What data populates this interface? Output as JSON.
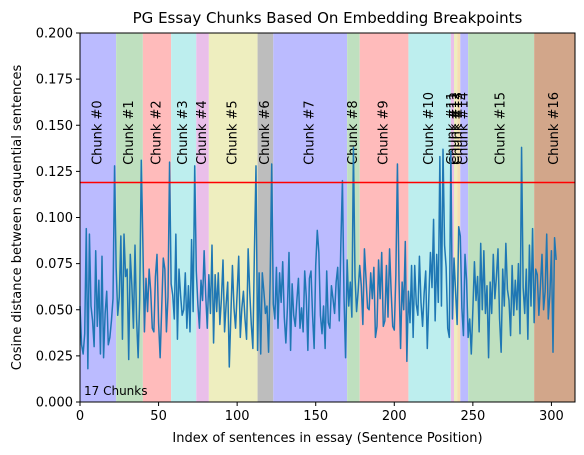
{
  "chart_data": {
    "type": "line",
    "title": "PG Essay Chunks Based On Embedding Breakpoints",
    "xlabel": "Index of sentences in essay (Sentence Position)",
    "ylabel": "Cosine distance between sequential sentences",
    "xlim": [
      0,
      315
    ],
    "ylim": [
      0,
      0.2
    ],
    "xticks": [
      0,
      50,
      100,
      150,
      200,
      250,
      300
    ],
    "yticks": [
      0.0,
      0.025,
      0.05,
      0.075,
      0.1,
      0.125,
      0.15,
      0.175,
      0.2
    ],
    "ytick_labels": [
      "0.000",
      "0.025",
      "0.050",
      "0.075",
      "0.100",
      "0.125",
      "0.150",
      "0.175",
      "0.200"
    ],
    "threshold": 0.119,
    "threshold_color": "#ff0000",
    "line_color": "#1f77b4",
    "grid": false,
    "annotation": "17 Chunks",
    "chunks": [
      {
        "label": "Chunk #0",
        "start": 0,
        "end": 23,
        "color": "#bbbbff"
      },
      {
        "label": "Chunk #1",
        "start": 23,
        "end": 40,
        "color": "#bfe0bf"
      },
      {
        "label": "Chunk #2",
        "start": 40,
        "end": 58,
        "color": "#ffbbbb"
      },
      {
        "label": "Chunk #3",
        "start": 58,
        "end": 74,
        "color": "#bdeeee"
      },
      {
        "label": "Chunk #4",
        "start": 74,
        "end": 82,
        "color": "#eabfea"
      },
      {
        "label": "Chunk #5",
        "start": 82,
        "end": 113,
        "color": "#eeeebf"
      },
      {
        "label": "Chunk #6",
        "start": 113,
        "end": 123,
        "color": "#bdbdbd"
      },
      {
        "label": "Chunk #7",
        "start": 123,
        "end": 170,
        "color": "#bbbbff"
      },
      {
        "label": "Chunk #8",
        "start": 170,
        "end": 178,
        "color": "#bfe0bf"
      },
      {
        "label": "Chunk #9",
        "start": 178,
        "end": 209,
        "color": "#ffbbbb"
      },
      {
        "label": "Chunk #10",
        "start": 209,
        "end": 236,
        "color": "#bdeeee"
      },
      {
        "label": "Chunk #11",
        "start": 236,
        "end": 238,
        "color": "#eabfea"
      },
      {
        "label": "Chunk #12",
        "start": 238,
        "end": 240,
        "color": "#eeeebf"
      },
      {
        "label": "Chunk #13",
        "start": 240,
        "end": 242,
        "color": "#f5deb3"
      },
      {
        "label": "Chunk #14",
        "start": 242,
        "end": 247,
        "color": "#bbbbff"
      },
      {
        "label": "Chunk #15",
        "start": 247,
        "end": 289,
        "color": "#bfe0bf"
      },
      {
        "label": "Chunk #16",
        "start": 289,
        "end": 315,
        "color": "#d2a68a"
      }
    ],
    "y": [
      0.052,
      0.031,
      0.026,
      0.037,
      0.094,
      0.018,
      0.091,
      0.052,
      0.044,
      0.03,
      0.082,
      0.041,
      0.066,
      0.026,
      0.079,
      0.024,
      0.048,
      0.06,
      0.031,
      0.035,
      0.044,
      0.056,
      0.128,
      0.073,
      0.047,
      0.057,
      0.09,
      0.034,
      0.091,
      0.068,
      0.072,
      0.023,
      0.08,
      0.063,
      0.04,
      0.085,
      0.045,
      0.024,
      0.056,
      0.131,
      0.086,
      0.038,
      0.067,
      0.049,
      0.072,
      0.06,
      0.04,
      0.038,
      0.068,
      0.08,
      0.043,
      0.024,
      0.051,
      0.078,
      0.072,
      0.038,
      0.057,
      0.13,
      0.064,
      0.058,
      0.045,
      0.091,
      0.034,
      0.072,
      0.058,
      0.047,
      0.05,
      0.07,
      0.04,
      0.063,
      0.038,
      0.088,
      0.049,
      0.128,
      0.071,
      0.053,
      0.04,
      0.066,
      0.055,
      0.082,
      0.058,
      0.04,
      0.069,
      0.048,
      0.085,
      0.032,
      0.069,
      0.049,
      0.07,
      0.042,
      0.056,
      0.077,
      0.038,
      0.053,
      0.065,
      0.019,
      0.047,
      0.074,
      0.051,
      0.04,
      0.059,
      0.079,
      0.035,
      0.051,
      0.06,
      0.045,
      0.034,
      0.083,
      0.06,
      0.042,
      0.029,
      0.082,
      0.128,
      0.028,
      0.07,
      0.026,
      0.07,
      0.06,
      0.048,
      0.052,
      0.027,
      0.066,
      0.129,
      0.053,
      0.045,
      0.073,
      0.04,
      0.07,
      0.054,
      0.076,
      0.046,
      0.032,
      0.051,
      0.081,
      0.028,
      0.064,
      0.047,
      0.041,
      0.055,
      0.067,
      0.04,
      0.051,
      0.038,
      0.071,
      0.057,
      0.028,
      0.067,
      0.071,
      0.047,
      0.029,
      0.074,
      0.093,
      0.081,
      0.047,
      0.037,
      0.052,
      0.029,
      0.071,
      0.043,
      0.04,
      0.063,
      0.056,
      0.048,
      0.065,
      0.073,
      0.044,
      0.086,
      0.12,
      0.057,
      0.024,
      0.077,
      0.052,
      0.065,
      0.046,
      0.138,
      0.068,
      0.049,
      0.06,
      0.074,
      0.063,
      0.042,
      0.083,
      0.067,
      0.051,
      0.05,
      0.07,
      0.056,
      0.073,
      0.035,
      0.041,
      0.077,
      0.056,
      0.081,
      0.041,
      0.044,
      0.074,
      0.046,
      0.083,
      0.06,
      0.041,
      0.039,
      0.069,
      0.129,
      0.066,
      0.029,
      0.065,
      0.05,
      0.087,
      0.022,
      0.06,
      0.043,
      0.074,
      0.035,
      0.074,
      0.053,
      0.047,
      0.079,
      0.054,
      0.041,
      0.059,
      0.071,
      0.029,
      0.057,
      0.081,
      0.062,
      0.099,
      0.044,
      0.08,
      0.054,
      0.133,
      0.052,
      0.137,
      0.085,
      0.073,
      0.04,
      0.035,
      0.136,
      0.045,
      0.078,
      0.06,
      0.042,
      0.095,
      0.09,
      0.051,
      0.036,
      0.08,
      0.066,
      0.035,
      0.045,
      0.026,
      0.05,
      0.076,
      0.055,
      0.068,
      0.038,
      0.086,
      0.05,
      0.082,
      0.048,
      0.063,
      0.024,
      0.065,
      0.048,
      0.08,
      0.056,
      0.068,
      0.083,
      0.045,
      0.027,
      0.072,
      0.052,
      0.086,
      0.061,
      0.055,
      0.036,
      0.074,
      0.047,
      0.066,
      0.05,
      0.075,
      0.037,
      0.138,
      0.062,
      0.048,
      0.072,
      0.034,
      0.085,
      0.052,
      0.094,
      0.043,
      0.072,
      0.069,
      0.047,
      0.063,
      0.08,
      0.05,
      0.06,
      0.091,
      0.045,
      0.058,
      0.082,
      0.027,
      0.089,
      0.077
    ]
  }
}
